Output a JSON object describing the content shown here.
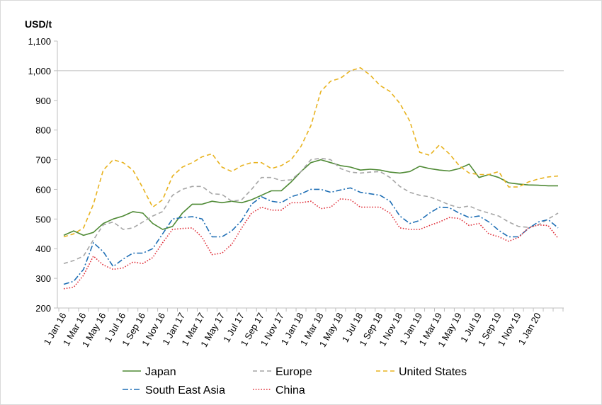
{
  "chart_data": {
    "type": "line",
    "ylabel": "USD/t",
    "ylim": [
      200,
      1100
    ],
    "yticks": [
      "200",
      "300",
      "400",
      "500",
      "600",
      "700",
      "800",
      "900",
      "1,000",
      "1,100"
    ],
    "xtick_labels": [
      "1 Jan 16",
      "1 Mar 16",
      "1 May 16",
      "1 Jul 16",
      "1 Sep 16",
      "1 Nov 16",
      "1 Jan 17",
      "1 Mar 17",
      "1 May 17",
      "1 Jul 17",
      "1 Sep 17",
      "1 Nov 17",
      "1 Jan 18",
      "1 Mar 18",
      "1 May 18",
      "1 Jul 18",
      "1 Sep 18",
      "1 Nov 18",
      "1 Jan 19",
      "1 Mar 19",
      "1 May 19",
      "1 Jul 19",
      "1 Sep 19",
      "1 Nov 19",
      "1 Jan 20"
    ],
    "x_start": "1 Jan 16",
    "x_step": "1 month",
    "grid": "horizontal major only (100 and 1,000 lines)",
    "legend": "bottom",
    "series": [
      {
        "name": "Japan",
        "color": "#4f8a35",
        "dash": "solid",
        "values": [
          445,
          460,
          445,
          455,
          485,
          500,
          510,
          525,
          520,
          485,
          465,
          475,
          520,
          550,
          550,
          560,
          555,
          560,
          555,
          565,
          580,
          595,
          595,
          625,
          660,
          690,
          700,
          690,
          680,
          675,
          665,
          668,
          665,
          658,
          655,
          660,
          678,
          670,
          665,
          662,
          670,
          685,
          640,
          650,
          640,
          622,
          618,
          615,
          614,
          612,
          612
        ]
      },
      {
        "name": "Europe",
        "color": "#a6a6a6",
        "dash": "dashed",
        "values": [
          350,
          360,
          375,
          430,
          480,
          490,
          465,
          470,
          490,
          510,
          525,
          580,
          600,
          610,
          610,
          585,
          583,
          560,
          565,
          600,
          640,
          640,
          630,
          632,
          660,
          700,
          705,
          700,
          670,
          658,
          655,
          658,
          660,
          640,
          610,
          590,
          580,
          575,
          562,
          548,
          538,
          544,
          530,
          520,
          510,
          490,
          475,
          472,
          480,
          500,
          520
        ]
      },
      {
        "name": "United States",
        "color": "#e8b320",
        "dash": "dashed",
        "values": [
          440,
          450,
          470,
          550,
          665,
          700,
          690,
          665,
          605,
          540,
          565,
          645,
          675,
          690,
          710,
          720,
          675,
          660,
          680,
          690,
          690,
          670,
          680,
          700,
          745,
          815,
          930,
          965,
          975,
          1000,
          1010,
          985,
          950,
          930,
          890,
          830,
          725,
          715,
          750,
          720,
          680,
          655,
          650,
          650,
          660,
          608,
          608,
          625,
          635,
          642,
          645
        ]
      },
      {
        "name": "South East Asia",
        "color": "#1f6fb5",
        "dash": "dashdot",
        "values": [
          280,
          290,
          330,
          420,
          390,
          340,
          365,
          385,
          385,
          400,
          450,
          500,
          505,
          508,
          500,
          440,
          440,
          460,
          495,
          550,
          575,
          560,
          555,
          575,
          585,
          600,
          600,
          590,
          598,
          605,
          590,
          585,
          580,
          560,
          510,
          485,
          495,
          520,
          540,
          538,
          520,
          505,
          510,
          490,
          462,
          440,
          440,
          468,
          490,
          498,
          470
        ]
      },
      {
        "name": "China",
        "color": "#e0323c",
        "dash": "dotted",
        "values": [
          265,
          270,
          310,
          375,
          345,
          330,
          335,
          355,
          350,
          370,
          420,
          465,
          468,
          470,
          438,
          380,
          385,
          415,
          470,
          520,
          540,
          530,
          530,
          555,
          555,
          560,
          535,
          540,
          568,
          565,
          540,
          540,
          540,
          520,
          470,
          465,
          465,
          478,
          490,
          505,
          502,
          478,
          485,
          450,
          440,
          425,
          438,
          470,
          480,
          478,
          435
        ]
      }
    ]
  }
}
